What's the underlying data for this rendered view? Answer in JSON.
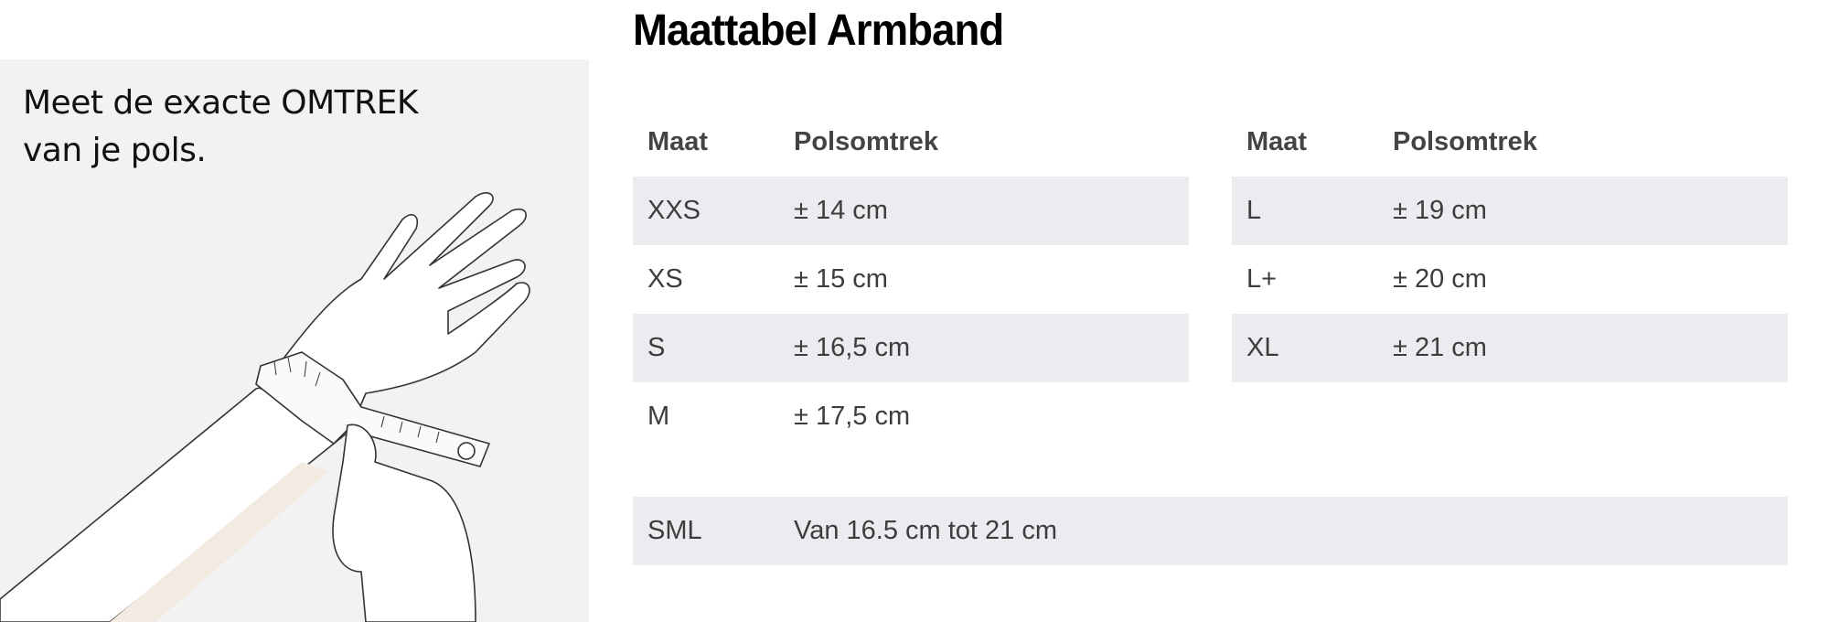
{
  "title": "Maattabel Armband",
  "instruction": {
    "line1": "Meet de exacte OMTREK",
    "line2": "van je pols."
  },
  "table": {
    "headers": {
      "size": "Maat",
      "circumference": "Polsomtrek"
    },
    "left_rows": [
      {
        "size": "XXS",
        "value": "± 14 cm"
      },
      {
        "size": "XS",
        "value": "± 15 cm"
      },
      {
        "size": "S",
        "value": "± 16,5 cm"
      },
      {
        "size": "M",
        "value": "± 17,5 cm"
      }
    ],
    "right_rows": [
      {
        "size": "L",
        "value": "± 19 cm"
      },
      {
        "size": "L+",
        "value": "± 20 cm"
      },
      {
        "size": "XL",
        "value": "± 21 cm"
      }
    ],
    "sml_row": {
      "size": "SML",
      "value": "Van 16.5 cm tot 21 cm"
    }
  },
  "colors": {
    "panel_bg": "#f2f2f2",
    "row_shade": "#ececf0",
    "text": "#3d3d3d"
  }
}
